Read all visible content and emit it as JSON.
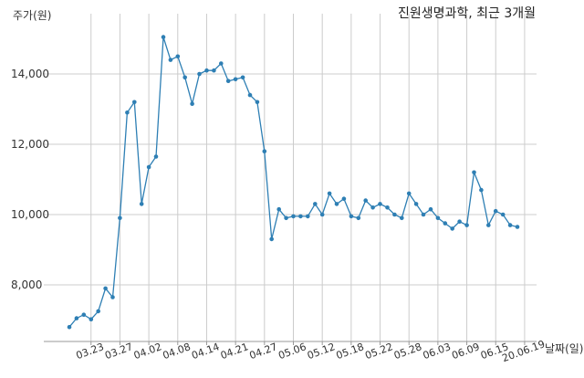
{
  "chart_data": {
    "type": "line",
    "title": "진원생명과학, 최근 3개월",
    "ylabel": "주가(원)",
    "xlabel": "날짜(일)",
    "ylim": [
      6000,
      15300
    ],
    "yticks": [
      8000,
      10000,
      12000,
      14000
    ],
    "ytick_labels": [
      "8,000",
      "10,000",
      "12,000",
      "14,000"
    ],
    "grid": true,
    "color": "#2e7fb4",
    "xtick_labels": [
      "03.23",
      "03.27",
      "04.02",
      "04.08",
      "04.14",
      "04.21",
      "04.27",
      "05.06",
      "05.12",
      "05.18",
      "05.22",
      "05.28",
      "06.03",
      "06.09",
      "06.15",
      "20.06.19"
    ],
    "xtick_index": [
      3,
      7,
      11,
      15,
      19,
      23,
      27,
      31,
      35,
      39,
      43,
      47,
      51,
      55,
      59,
      63
    ],
    "series": [
      {
        "values": [
          6800,
          7050,
          7150,
          7020,
          7250,
          7900,
          7650,
          9900,
          12900,
          13200,
          10300,
          11350,
          11650,
          15050,
          14400,
          14500,
          13900,
          13150,
          14000,
          14100,
          14100,
          14300,
          13800,
          13850,
          13900,
          13400,
          13200,
          11800,
          9300,
          10150,
          9900,
          9950,
          9950,
          9950,
          10300,
          10000,
          10600,
          10300,
          10450,
          9950,
          9900,
          10400,
          10200,
          10300,
          10200,
          10000,
          9900,
          10600,
          10300,
          10000,
          10150,
          9900,
          9750,
          9600,
          9800,
          9700,
          11200,
          10700,
          9700,
          10100,
          10000,
          9700,
          9650
        ]
      }
    ]
  }
}
